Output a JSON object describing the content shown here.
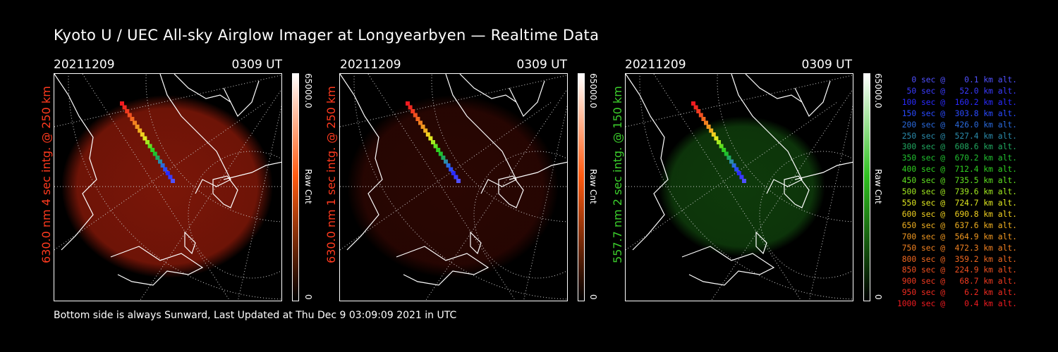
{
  "title": "Kyoto U / UEC All-sky Airglow Imager at Longyearbyen — Realtime Data",
  "panels": [
    {
      "date": "20211209",
      "time": "0309 UT",
      "label": "630.0 nm 4 sec intg. @ 250 km",
      "label_color": "#ff3a1e",
      "cbar_max": "65000.0",
      "cbar_min": "0",
      "cbar_unit": "Raw Cnt",
      "glow_color": "#7a1608",
      "bar_top": "#ffffff",
      "bar_mid": "#ff5a10",
      "bar_bot": "#000000"
    },
    {
      "date": "20211209",
      "time": "0309 UT",
      "label": "630.0 nm 1 sec intg. @ 250 km",
      "label_color": "#ff3a1e",
      "cbar_max": "65000.0",
      "cbar_min": "0",
      "cbar_unit": "Raw Cnt",
      "glow_color": "#2a0602",
      "bar_top": "#ffffff",
      "bar_mid": "#ff5a10",
      "bar_bot": "#000000"
    },
    {
      "date": "20211209",
      "time": "0309 UT",
      "label": "557.7 nm 2 sec intg. @ 150 km",
      "label_color": "#3ccf2c",
      "cbar_max": "65000.0",
      "cbar_min": "0",
      "cbar_unit": "Raw Cnt",
      "glow_color": "#0e3a0b",
      "bar_top": "#ffffff",
      "bar_mid": "#30c020",
      "bar_bot": "#000000"
    }
  ],
  "footer": "Bottom side is always Sunward, Last Updated at Thu Dec  9 03:09:09 2021 in UTC",
  "legend": [
    {
      "text": "   0 sec @    0.1 km alt.",
      "color": "#5050ff"
    },
    {
      "text": "  50 sec @   52.0 km alt.",
      "color": "#3a3aff"
    },
    {
      "text": " 100 sec @  160.2 km alt.",
      "color": "#2a2aff"
    },
    {
      "text": " 150 sec @  303.8 km alt.",
      "color": "#2a4aff"
    },
    {
      "text": " 200 sec @  426.0 km alt.",
      "color": "#2a6ade"
    },
    {
      "text": " 250 sec @  527.4 km alt.",
      "color": "#2a8aaa"
    },
    {
      "text": " 300 sec @  608.6 km alt.",
      "color": "#20a860"
    },
    {
      "text": " 350 sec @  670.2 km alt.",
      "color": "#20c030"
    },
    {
      "text": " 400 sec @  712.4 km alt.",
      "color": "#30d020"
    },
    {
      "text": " 450 sec @  735.5 km alt.",
      "color": "#60e020"
    },
    {
      "text": " 500 sec @  739.6 km alt.",
      "color": "#a0e820"
    },
    {
      "text": " 550 sec @  724.7 km alt.",
      "color": "#e0e820"
    },
    {
      "text": " 600 sec @  690.8 km alt.",
      "color": "#f0d020"
    },
    {
      "text": " 650 sec @  637.6 km alt.",
      "color": "#f0b020"
    },
    {
      "text": " 700 sec @  564.9 km alt.",
      "color": "#f09820"
    },
    {
      "text": " 750 sec @  472.3 km alt.",
      "color": "#f08020"
    },
    {
      "text": " 800 sec @  359.2 km alt.",
      "color": "#f06820"
    },
    {
      "text": " 850 sec @  224.9 km alt.",
      "color": "#f05020"
    },
    {
      "text": " 900 sec @   68.7 km alt.",
      "color": "#f03a20"
    },
    {
      "text": " 950 sec @    6.2 km alt.",
      "color": "#f02a20"
    },
    {
      "text": "1000 sec @    0.4 km alt.",
      "color": "#f01a20"
    }
  ]
}
